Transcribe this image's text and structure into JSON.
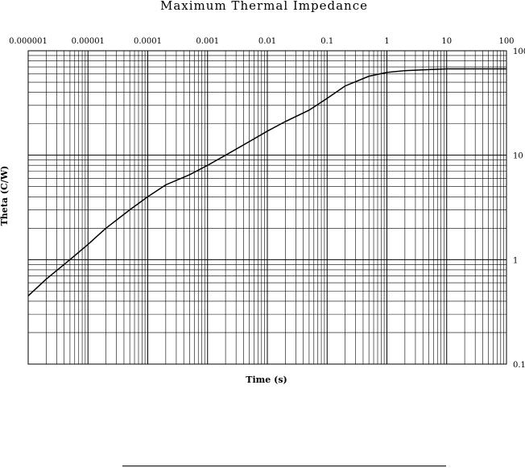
{
  "chart_data": {
    "type": "line",
    "title": "Maximum Thermal Impedance",
    "xlabel": "Time (s)",
    "ylabel": "Theta (C/W)",
    "x_scale": "log",
    "y_scale": "log",
    "xlim": [
      1e-06,
      100
    ],
    "ylim": [
      0.1,
      100
    ],
    "x_tick_labels": [
      "0.000001",
      "0.00001",
      "0.0001",
      "0.001",
      "0.01",
      "0.1",
      "1",
      "10",
      "100"
    ],
    "y_tick_labels": [
      "100",
      "10",
      "1",
      "0.1"
    ],
    "x_tick_values": [
      1e-06,
      1e-05,
      0.0001,
      0.001,
      0.01,
      0.1,
      1,
      10,
      100
    ],
    "y_tick_values": [
      100,
      10,
      1,
      0.1
    ],
    "x_label_position": "top",
    "y_label_position": "right",
    "grid": true,
    "series": [
      {
        "x": [
          1e-06,
          2e-06,
          5e-06,
          1e-05,
          2e-05,
          5e-05,
          0.0001,
          0.0002,
          0.0005,
          0.001,
          0.002,
          0.005,
          0.01,
          0.02,
          0.05,
          0.1,
          0.2,
          0.5,
          1,
          2,
          5,
          10,
          100
        ],
        "y": [
          0.45,
          0.65,
          1.0,
          1.4,
          2.0,
          3.0,
          4.0,
          5.2,
          6.5,
          8.0,
          10,
          13.5,
          17,
          21,
          27,
          35,
          46,
          57,
          62,
          64.5,
          66,
          67,
          67
        ]
      }
    ]
  }
}
